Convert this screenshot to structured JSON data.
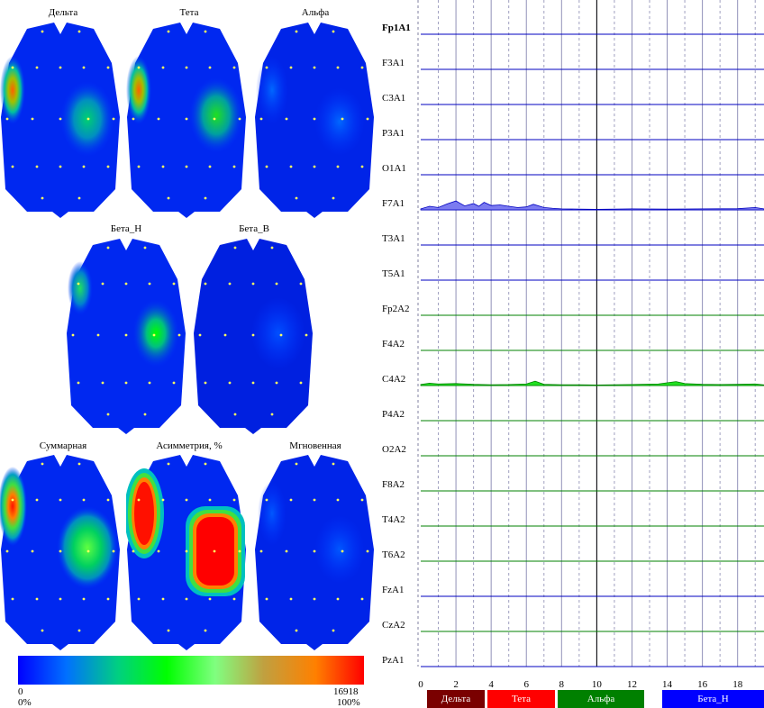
{
  "maps": [
    {
      "title": "Дельта"
    },
    {
      "title": "Тета"
    },
    {
      "title": "Альфа"
    },
    {
      "title": "Бета_Н"
    },
    {
      "title": "Бета_В"
    },
    {
      "title": "Суммарная"
    },
    {
      "title": "Асимметрия, %"
    },
    {
      "title": "Мгновенная"
    }
  ],
  "colorscale": {
    "min_label": "0",
    "max_label": "16918",
    "min_pct": "0%",
    "max_pct": "100%",
    "colors": [
      "#0000ff",
      "#0070ff",
      "#00d080",
      "#00ff00",
      "#80ff80",
      "#c0a040",
      "#ff8000",
      "#ff0000"
    ]
  },
  "chart_data": {
    "type": "area",
    "x_ticks": [
      "0",
      "2",
      "4",
      "6",
      "8",
      "10",
      "12",
      "14",
      "16",
      "18"
    ],
    "xlim": [
      0,
      19.5
    ],
    "current_marker": 10,
    "channels": [
      {
        "name": "Fp1A1",
        "color": "#0000c0",
        "active": true
      },
      {
        "name": "F3A1",
        "color": "#0000c0"
      },
      {
        "name": "C3A1",
        "color": "#0000c0"
      },
      {
        "name": "P3A1",
        "color": "#0000c0"
      },
      {
        "name": "O1A1",
        "color": "#0000c0"
      },
      {
        "name": "F7A1",
        "color": "#0000c0",
        "fill": "#7b7bf0",
        "x": [
          0,
          0.5,
          1,
          1.5,
          2,
          2.2,
          2.5,
          3,
          3.3,
          3.6,
          4,
          4.5,
          5,
          5.5,
          6,
          6.4,
          7,
          7.5,
          8,
          9,
          10,
          12,
          14,
          16,
          18,
          19,
          19.5
        ],
        "y": [
          0.05,
          0.18,
          0.12,
          0.3,
          0.45,
          0.35,
          0.2,
          0.32,
          0.18,
          0.38,
          0.22,
          0.25,
          0.18,
          0.12,
          0.15,
          0.28,
          0.12,
          0.08,
          0.05,
          0.04,
          0.03,
          0.05,
          0.04,
          0.05,
          0.06,
          0.12,
          0.05
        ]
      },
      {
        "name": "T3A1",
        "color": "#0000c0"
      },
      {
        "name": "T5A1",
        "color": "#0000c0"
      },
      {
        "name": "Fp2A2",
        "color": "#008000"
      },
      {
        "name": "F4A2",
        "color": "#008000"
      },
      {
        "name": "C4A2",
        "color": "#008000",
        "fill": "#20e020",
        "x": [
          0,
          0.5,
          1,
          2,
          3,
          4,
          5,
          6,
          6.5,
          7,
          8,
          9,
          10,
          12,
          13.5,
          14.5,
          15,
          16,
          17,
          18,
          19,
          19.5
        ],
        "y": [
          0.05,
          0.12,
          0.08,
          0.1,
          0.06,
          0.04,
          0.05,
          0.08,
          0.22,
          0.06,
          0.04,
          0.04,
          0.03,
          0.05,
          0.08,
          0.2,
          0.1,
          0.06,
          0.05,
          0.06,
          0.08,
          0.03
        ]
      },
      {
        "name": "P4A2",
        "color": "#008000"
      },
      {
        "name": "O2A2",
        "color": "#008000"
      },
      {
        "name": "F8A2",
        "color": "#008000"
      },
      {
        "name": "T4A2",
        "color": "#008000"
      },
      {
        "name": "T6A2",
        "color": "#008000"
      },
      {
        "name": "FzA1",
        "color": "#0000c0"
      },
      {
        "name": "CzA2",
        "color": "#008000"
      },
      {
        "name": "PzA1",
        "color": "#0000c0"
      }
    ]
  },
  "bands": [
    {
      "label": "Дельта",
      "color": "#7a0000"
    },
    {
      "label": "Тета",
      "color": "#ff0000"
    },
    {
      "label": "Альфа",
      "color": "#008000"
    },
    {
      "label": "Бета_Н",
      "color": "#0000ff"
    }
  ]
}
